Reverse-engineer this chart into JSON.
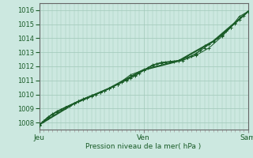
{
  "bg_color": "#cce8e0",
  "grid_color": "#a0c8b8",
  "line_color": "#1a5c28",
  "marker_color": "#1a5c28",
  "xlabel": "Pression niveau de la mer( hPa )",
  "yticks": [
    1008,
    1009,
    1010,
    1011,
    1012,
    1013,
    1014,
    1015,
    1016
  ],
  "ylim": [
    1007.5,
    1016.5
  ],
  "xlim": [
    0,
    48
  ],
  "day_labels": [
    [
      "Jeu",
      0
    ],
    [
      "Ven",
      24
    ],
    [
      "Sam",
      48
    ]
  ],
  "series1_x": [
    0,
    1,
    2,
    3,
    4,
    5,
    6,
    7,
    8,
    9,
    10,
    11,
    12,
    13,
    14,
    15,
    16,
    17,
    18,
    19,
    20,
    21,
    22,
    23,
    24,
    25,
    26,
    27,
    28,
    29,
    30,
    31,
    32,
    33,
    34,
    35,
    36,
    37,
    38,
    39,
    40,
    41,
    42,
    43,
    44,
    45,
    46,
    47,
    48
  ],
  "series1_y": [
    1007.8,
    1008.1,
    1008.35,
    1008.55,
    1008.75,
    1008.9,
    1009.05,
    1009.2,
    1009.35,
    1009.5,
    1009.62,
    1009.75,
    1009.88,
    1010.0,
    1010.12,
    1010.25,
    1010.4,
    1010.55,
    1010.7,
    1010.85,
    1011.0,
    1011.15,
    1011.3,
    1011.5,
    1011.7,
    1011.9,
    1012.05,
    1012.15,
    1012.25,
    1012.3,
    1012.32,
    1012.35,
    1012.4,
    1012.5,
    1012.62,
    1012.75,
    1012.92,
    1013.1,
    1013.32,
    1013.55,
    1013.78,
    1014.0,
    1014.25,
    1014.52,
    1014.78,
    1015.05,
    1015.3,
    1015.6,
    1015.9
  ],
  "series2_x": [
    0,
    2,
    4,
    6,
    8,
    10,
    12,
    14,
    16,
    18,
    20,
    22,
    24,
    26,
    28,
    30,
    32,
    34,
    36,
    38,
    40,
    42,
    44,
    46,
    48
  ],
  "series2_y": [
    1007.85,
    1008.4,
    1008.8,
    1009.1,
    1009.38,
    1009.68,
    1009.92,
    1010.15,
    1010.42,
    1010.72,
    1011.05,
    1011.38,
    1011.72,
    1012.1,
    1012.28,
    1012.35,
    1012.42,
    1012.62,
    1012.85,
    1013.45,
    1013.75,
    1014.2,
    1014.75,
    1015.55,
    1015.9
  ],
  "series3_x": [
    0,
    3,
    6,
    9,
    12,
    15,
    18,
    21,
    24,
    27,
    30,
    33,
    36,
    39,
    42,
    45,
    48
  ],
  "series3_y": [
    1007.82,
    1008.6,
    1009.08,
    1009.52,
    1009.9,
    1010.28,
    1010.72,
    1011.4,
    1011.75,
    1012.18,
    1012.32,
    1012.42,
    1012.78,
    1013.3,
    1014.12,
    1015.1,
    1015.9
  ],
  "series4_x": [
    0,
    8,
    16,
    24,
    32,
    40,
    48
  ],
  "series4_y": [
    1007.85,
    1009.35,
    1010.42,
    1011.75,
    1012.38,
    1013.78,
    1015.9
  ]
}
